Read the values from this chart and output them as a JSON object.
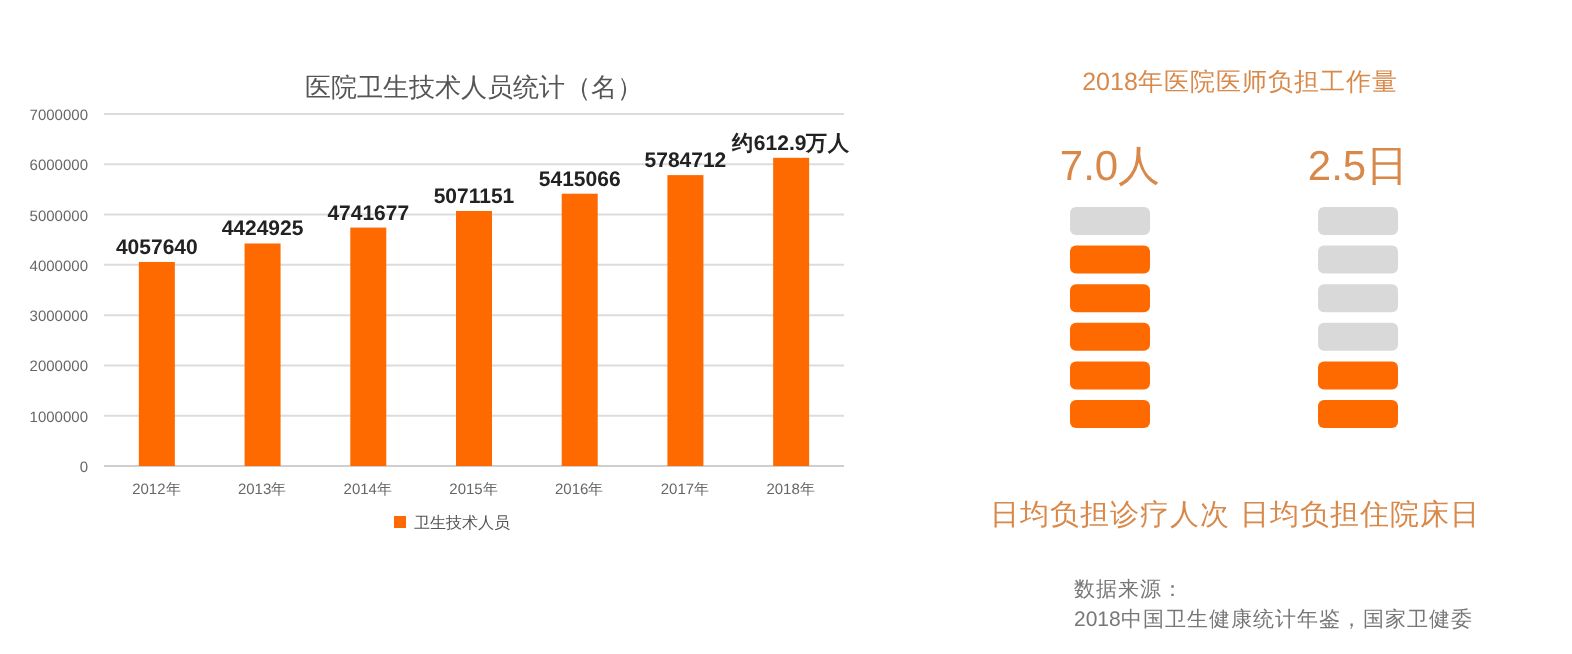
{
  "chart_data": [
    {
      "type": "bar",
      "title": "医院卫生技术人员统计（名）",
      "categories": [
        "2012年",
        "2013年",
        "2014年",
        "2015年",
        "2016年",
        "2017年",
        "2018年"
      ],
      "series": [
        {
          "name": "卫生技术人员",
          "color": "#ff6a00",
          "values": [
            4057640,
            4424925,
            4741677,
            5071151,
            5415066,
            5784712,
            6129000
          ],
          "value_labels": [
            "4057640",
            "4424925",
            "4741677",
            "5071151",
            "5415066",
            "5784712",
            "约612.9万人"
          ]
        }
      ],
      "ylim": [
        0,
        7000000
      ],
      "yticks": [
        0,
        1000000,
        2000000,
        3000000,
        4000000,
        5000000,
        6000000,
        7000000
      ],
      "grid": "y",
      "legend": "bottom"
    },
    {
      "type": "other",
      "title": "2018年医院医师负担工作量",
      "annotations": [
        "7.0人",
        "2.5日",
        "日均负担诊疗人次",
        "日均负担住院床日",
        "数据来源：",
        "2018中国卫生健康统计年鉴，国家卫健委"
      ]
    }
  ]
}
